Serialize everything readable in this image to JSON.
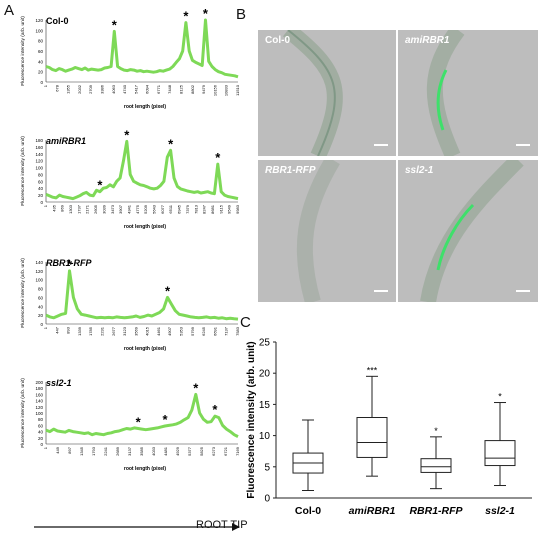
{
  "panels": {
    "a": {
      "letter": "A",
      "plots": [
        {
          "label": "Col-0",
          "ylabel": "Fluorescence intensity (arb. unit)",
          "xlabel": "root length (pixel)",
          "ticks": [
            "0",
            "20",
            "40",
            "60",
            "80",
            "100",
            "120"
          ],
          "xticks": [
            "1",
            "678",
            "1355",
            "2032",
            "2709",
            "3386",
            "4063",
            "4740",
            "5417",
            "6094",
            "6771",
            "7448",
            "8125",
            "8802",
            "9479",
            "10156",
            "10833",
            "11510"
          ]
        },
        {
          "label": "amiRBR1",
          "ylabel": "Fluorescence intensity (arb. unit)",
          "xlabel": "root length (pixel)",
          "ticks": [
            "0",
            "20",
            "40",
            "60",
            "80",
            "100",
            "120",
            "140",
            "160",
            "180"
          ],
          "xticks": [
            "1",
            "435",
            "869",
            "1303",
            "1737",
            "2171",
            "2605",
            "3039",
            "3473",
            "3907",
            "4341",
            "4775",
            "5209",
            "5643",
            "6077",
            "6511",
            "6945",
            "7379",
            "7813",
            "8247",
            "8681",
            "9115",
            "9549",
            "9983"
          ]
        },
        {
          "label": "RBR1-RFP",
          "ylabel": "Fluorescence intensity (arb. unit)",
          "xlabel": "root length (pixel)",
          "ticks": [
            "0",
            "20",
            "40",
            "60",
            "80",
            "100",
            "120",
            "140"
          ],
          "xticks": [
            "1",
            "447",
            "893",
            "1339",
            "1785",
            "2231",
            "2677",
            "3123",
            "3569",
            "4015",
            "4461",
            "4907",
            "5353",
            "5799",
            "6245",
            "6691",
            "7137",
            "7583"
          ]
        },
        {
          "label": "ssl2-1",
          "ylabel": "Fluorescence intensity (arb. unit)",
          "xlabel": "root length (pixel)",
          "ticks": [
            "0",
            "20",
            "40",
            "60",
            "80",
            "100",
            "120",
            "140",
            "160",
            "180",
            "200"
          ],
          "xticks": [
            "1",
            "449",
            "897",
            "1345",
            "1793",
            "2241",
            "2689",
            "3137",
            "3585",
            "4033",
            "4481",
            "4929",
            "5377",
            "5825",
            "6273",
            "6721",
            "7169"
          ]
        }
      ],
      "root_tip_label": "ROOT TIP"
    },
    "b": {
      "letter": "B",
      "images": [
        "Col-0",
        "amiRBR1",
        "RBR1-RFP",
        "ssl2-1"
      ]
    },
    "c": {
      "letter": "C",
      "ylabel": "Fluorescence intensity (arb. unit)",
      "yticks": [
        "0",
        "5",
        "10",
        "15",
        "20",
        "25"
      ],
      "categories": [
        "Col-0",
        "amiRBR1",
        "RBR1-RFP",
        "ssl2-1"
      ]
    }
  },
  "chart_data": [
    {
      "type": "line",
      "label": "Col-0",
      "xlabel": "root length (pixel)",
      "ylabel": "Fluorescence intensity (arb. unit)",
      "ylim": [
        0,
        120
      ],
      "x_range": [
        1,
        11510
      ],
      "values": [
        30,
        28,
        24,
        22,
        26,
        24,
        21,
        23,
        25,
        28,
        26,
        24,
        27,
        23,
        25,
        24,
        23,
        24,
        27,
        28,
        30,
        98,
        30,
        26,
        23,
        22,
        24,
        23,
        21,
        22,
        20,
        21,
        20,
        19,
        20,
        22,
        21,
        23,
        25,
        30,
        38,
        45,
        60,
        115,
        60,
        42,
        38,
        35,
        32,
        120,
        40,
        30,
        24,
        20,
        18,
        15,
        14,
        13,
        12,
        10
      ],
      "peaks_marked": [
        21,
        43,
        49
      ]
    },
    {
      "type": "line",
      "label": "amiRBR1",
      "xlabel": "root length (pixel)",
      "ylabel": "Fluorescence intensity (arb. unit)",
      "ylim": [
        0,
        180
      ],
      "x_range": [
        1,
        9983
      ],
      "values": [
        22,
        18,
        14,
        12,
        20,
        16,
        14,
        12,
        10,
        14,
        18,
        24,
        28,
        20,
        18,
        34,
        30,
        40,
        42,
        50,
        44,
        60,
        70,
        120,
        176,
        80,
        60,
        55,
        50,
        48,
        44,
        40,
        38,
        40,
        48,
        60,
        130,
        150,
        70,
        45,
        38,
        35,
        32,
        30,
        28,
        30,
        26,
        28,
        30,
        26,
        24,
        110,
        30,
        20,
        16,
        14,
        12,
        10
      ],
      "peaks_marked": [
        16,
        24,
        37,
        51
      ]
    },
    {
      "type": "line",
      "label": "RBR1-RFP",
      "xlabel": "root length (pixel)",
      "ylabel": "Fluorescence intensity (arb. unit)",
      "ylim": [
        0,
        140
      ],
      "x_range": [
        1,
        7583
      ],
      "values": [
        20,
        16,
        14,
        18,
        22,
        24,
        120,
        60,
        34,
        22,
        20,
        18,
        16,
        14,
        15,
        14,
        15,
        14,
        16,
        15,
        14,
        15,
        16,
        18,
        15,
        17,
        20,
        18,
        22,
        26,
        34,
        60,
        45,
        30,
        22,
        20,
        18,
        16,
        15,
        14,
        15,
        16,
        14,
        15,
        13,
        14,
        12,
        13,
        12,
        11
      ],
      "peaks_marked": [
        6,
        31
      ]
    },
    {
      "type": "line",
      "label": "ssl2-1",
      "xlabel": "root length (pixel)",
      "ylabel": "Fluorescence intensity (arb. unit)",
      "ylim": [
        0,
        200
      ],
      "x_range": [
        1,
        7169
      ],
      "values": [
        45,
        40,
        48,
        42,
        40,
        38,
        44,
        40,
        38,
        36,
        34,
        36,
        30,
        34,
        32,
        30,
        34,
        36,
        40,
        42,
        46,
        50,
        48,
        52,
        50,
        48,
        46,
        48,
        50,
        52,
        55,
        58,
        60,
        62,
        65,
        70,
        78,
        85,
        110,
        160,
        100,
        80,
        70,
        72,
        90,
        85,
        60,
        48,
        40,
        30,
        24
      ],
      "peaks_marked": [
        24,
        31,
        39,
        44
      ]
    },
    {
      "type": "box",
      "label": "C",
      "ylabel": "Fluorescence intensity (arb. unit)",
      "ylim": [
        0,
        25
      ],
      "categories": [
        "Col-0",
        "amiRBR1",
        "RBR1-RFP",
        "ssl2-1"
      ],
      "series": [
        {
          "whisker_low": 1.2,
          "q1": 4.0,
          "median": 5.6,
          "q3": 7.2,
          "whisker_high": 12.5,
          "marker": ""
        },
        {
          "whisker_low": 3.5,
          "q1": 6.5,
          "median": 8.9,
          "q3": 12.9,
          "whisker_high": 19.5,
          "marker": "***"
        },
        {
          "whisker_low": 1.5,
          "q1": 4.1,
          "median": 5.0,
          "q3": 6.3,
          "whisker_high": 9.8,
          "marker": "*"
        },
        {
          "whisker_low": 2.0,
          "q1": 5.2,
          "median": 6.4,
          "q3": 9.2,
          "whisker_high": 15.3,
          "marker": "*"
        }
      ]
    }
  ]
}
